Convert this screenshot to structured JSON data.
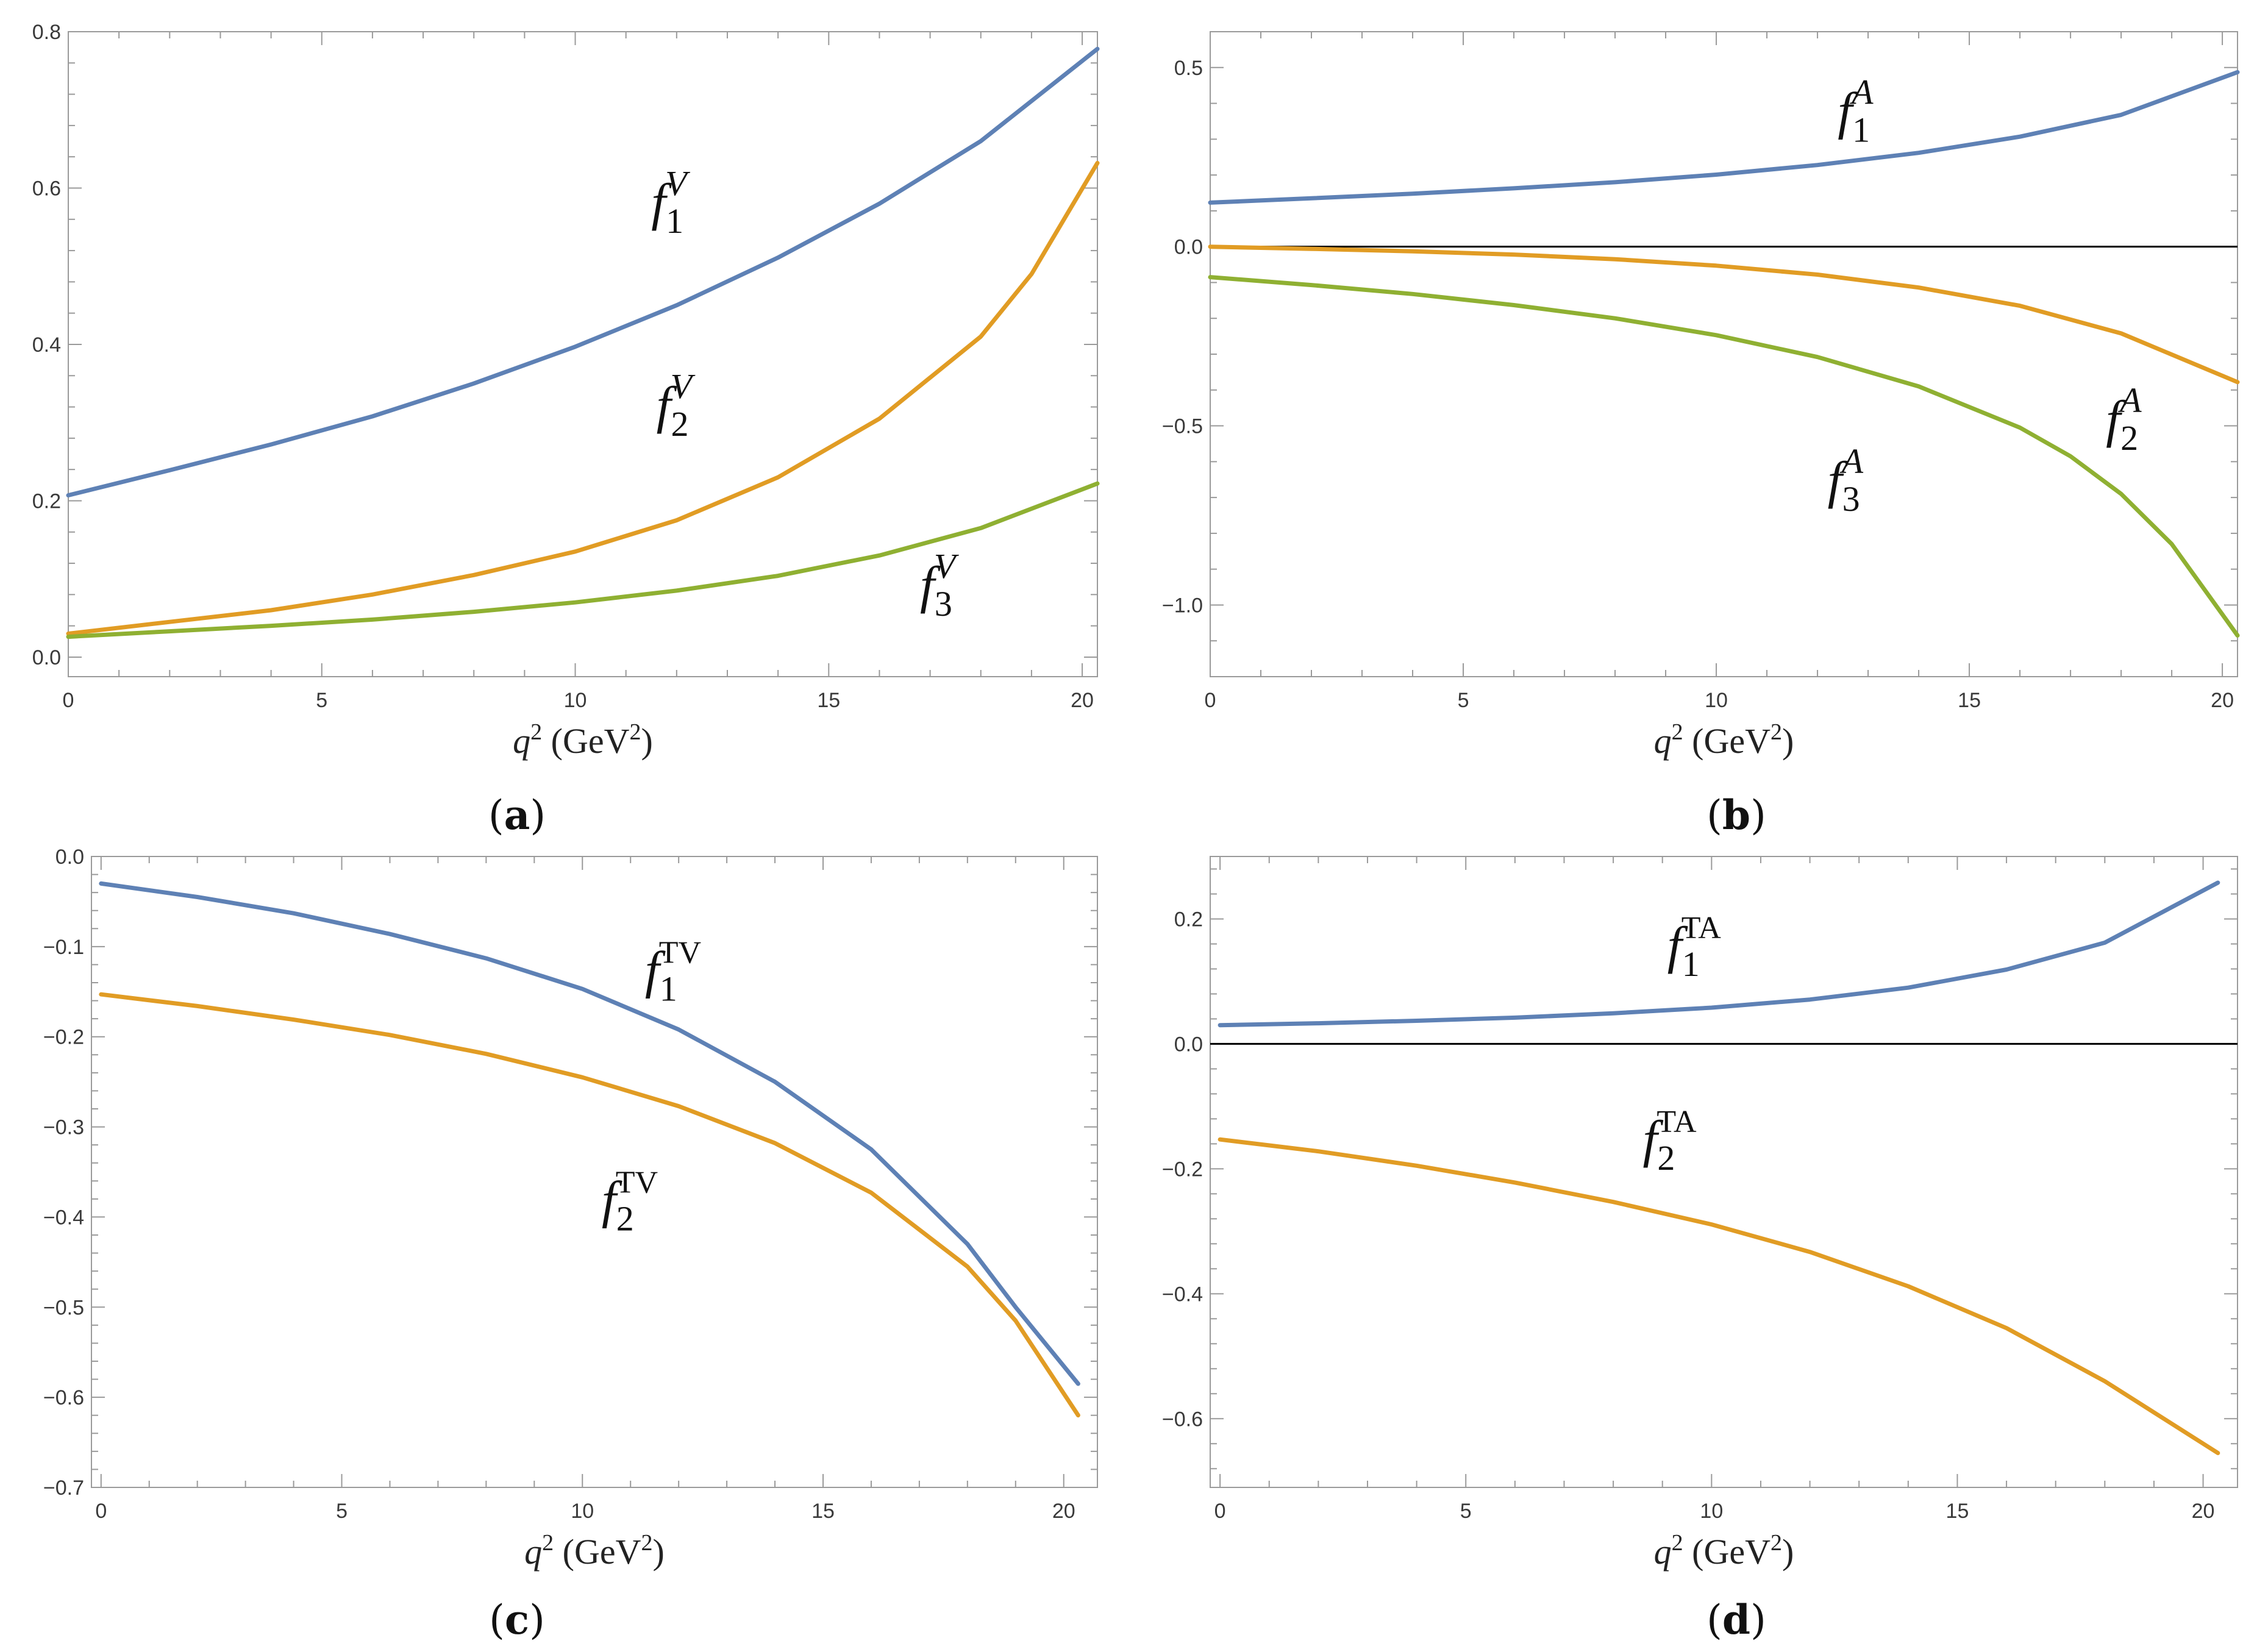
{
  "colors": {
    "blue": "#5e81b5",
    "orange": "#e19c24",
    "green": "#8fb032",
    "axis": "#9a9a9a",
    "zero": "#000000"
  },
  "chart_data": [
    {
      "id": "a",
      "type": "line",
      "caption": {
        "open": "(",
        "letter": "a",
        "close": ")"
      },
      "xlabel": {
        "var": "q",
        "exp": "2",
        "unit_open": " (GeV",
        "unit_exp": "2",
        "unit_close": ")"
      },
      "xlim": [
        0,
        20.3
      ],
      "ylim": [
        -0.025,
        0.8
      ],
      "xticks": [
        0,
        5,
        10,
        15,
        20
      ],
      "xtick_labels": [
        "0",
        "5",
        "10",
        "15",
        "20"
      ],
      "yticks": [
        0.0,
        0.2,
        0.4,
        0.6,
        0.8
      ],
      "ytick_labels": [
        "0.0",
        "0.2",
        "0.4",
        "0.6",
        "0.8"
      ],
      "zero_line": false,
      "series": [
        {
          "name": "f1V",
          "color": "blue",
          "label": {
            "f": "f",
            "sub": "1",
            "sup": "V",
            "upright": false,
            "at": [
              11.5,
              0.56
            ]
          },
          "x": [
            0,
            2,
            4,
            6,
            8,
            10,
            12,
            14,
            16,
            18,
            20.3
          ],
          "y": [
            0.207,
            0.239,
            0.272,
            0.308,
            0.35,
            0.397,
            0.45,
            0.511,
            0.58,
            0.66,
            0.778
          ]
        },
        {
          "name": "f2V",
          "color": "orange",
          "label": {
            "f": "f",
            "sub": "2",
            "sup": "V",
            "upright": false,
            "at": [
              11.6,
              0.3
            ]
          },
          "x": [
            0,
            2,
            4,
            6,
            8,
            10,
            12,
            14,
            16,
            18,
            19,
            20.3
          ],
          "y": [
            0.03,
            0.045,
            0.06,
            0.08,
            0.105,
            0.135,
            0.175,
            0.23,
            0.305,
            0.41,
            0.49,
            0.632
          ]
        },
        {
          "name": "f3V",
          "color": "green",
          "label": {
            "f": "f",
            "sub": "3",
            "sup": "V",
            "upright": false,
            "at": [
              16.8,
              0.07
            ]
          },
          "x": [
            0,
            2,
            4,
            6,
            8,
            10,
            12,
            14,
            16,
            18,
            20.3
          ],
          "y": [
            0.026,
            0.033,
            0.04,
            0.048,
            0.058,
            0.07,
            0.085,
            0.104,
            0.13,
            0.165,
            0.222
          ]
        }
      ]
    },
    {
      "id": "b",
      "type": "line",
      "caption": {
        "open": "(",
        "letter": "b",
        "close": ")"
      },
      "xlabel": {
        "var": "q",
        "exp": "2",
        "unit_open": " (GeV",
        "unit_exp": "2",
        "unit_close": ")"
      },
      "xlim": [
        0,
        20.3
      ],
      "ylim": [
        -1.2,
        0.6
      ],
      "xticks": [
        0,
        5,
        10,
        15,
        20
      ],
      "xtick_labels": [
        "0",
        "5",
        "10",
        "15",
        "20"
      ],
      "yticks": [
        -1.0,
        -0.5,
        0.0,
        0.5
      ],
      "ytick_labels": [
        "−1.0",
        "−0.5",
        "0.0",
        "0.5"
      ],
      "zero_line": true,
      "series": [
        {
          "name": "f1A",
          "color": "blue",
          "label": {
            "f": "f",
            "sub": "1",
            "sup": "A",
            "upright": false,
            "at": [
              12.4,
              0.33
            ]
          },
          "x": [
            0,
            2,
            4,
            6,
            8,
            10,
            12,
            14,
            16,
            18,
            20.3
          ],
          "y": [
            0.123,
            0.135,
            0.148,
            0.163,
            0.18,
            0.201,
            0.228,
            0.262,
            0.307,
            0.368,
            0.487
          ]
        },
        {
          "name": "f2A",
          "color": "orange",
          "label": {
            "f": "f",
            "sub": "2",
            "sup": "A",
            "upright": false,
            "at": [
              17.7,
              -0.53
            ]
          },
          "x": [
            0,
            2,
            4,
            6,
            8,
            10,
            12,
            14,
            16,
            18,
            20.3
          ],
          "y": [
            0.0,
            -0.006,
            -0.013,
            -0.022,
            -0.035,
            -0.053,
            -0.078,
            -0.114,
            -0.165,
            -0.242,
            -0.378
          ]
        },
        {
          "name": "f3A",
          "color": "green",
          "label": {
            "f": "f",
            "sub": "3",
            "sup": "A",
            "upright": false,
            "at": [
              12.2,
              -0.7
            ]
          },
          "x": [
            0,
            2,
            4,
            6,
            8,
            10,
            12,
            14,
            16,
            17,
            18,
            19,
            20.3
          ],
          "y": [
            -0.085,
            -0.107,
            -0.132,
            -0.163,
            -0.2,
            -0.247,
            -0.308,
            -0.39,
            -0.505,
            -0.585,
            -0.69,
            -0.83,
            -1.085
          ]
        }
      ]
    },
    {
      "id": "c",
      "type": "line",
      "caption": {
        "open": "(",
        "letter": "c",
        "close": ")"
      },
      "xlabel": {
        "var": "q",
        "exp": "2",
        "unit_open": " (GeV",
        "unit_exp": "2",
        "unit_close": ")"
      },
      "xlim": [
        -0.2,
        20.7
      ],
      "ylim": [
        -0.7,
        0.0
      ],
      "xticks": [
        0,
        5,
        10,
        15,
        20
      ],
      "xtick_labels": [
        "0",
        "5",
        "10",
        "15",
        "20"
      ],
      "yticks": [
        -0.7,
        -0.6,
        -0.5,
        -0.4,
        -0.3,
        -0.2,
        -0.1,
        0.0
      ],
      "ytick_labels": [
        "−0.7",
        "−0.6",
        "−0.5",
        "−0.4",
        "−0.3",
        "−0.2",
        "−0.1",
        "0.0"
      ],
      "zero_line": false,
      "series": [
        {
          "name": "f1TV",
          "color": "blue",
          "label": {
            "f": "f",
            "sub": "1",
            "sup": "TV",
            "upright": true,
            "at": [
              11.3,
              -0.145
            ]
          },
          "x": [
            0,
            2,
            4,
            6,
            8,
            10,
            12,
            14,
            16,
            18,
            19,
            20.3
          ],
          "y": [
            -0.03,
            -0.045,
            -0.063,
            -0.086,
            -0.113,
            -0.147,
            -0.192,
            -0.25,
            -0.325,
            -0.43,
            -0.5,
            -0.585
          ]
        },
        {
          "name": "f2TV",
          "color": "orange",
          "label": {
            "f": "f",
            "sub": "2",
            "sup": "TV",
            "upright": true,
            "at": [
              10.4,
              -0.4
            ]
          },
          "x": [
            0,
            2,
            4,
            6,
            8,
            10,
            12,
            14,
            16,
            18,
            19,
            20.3
          ],
          "y": [
            -0.153,
            -0.166,
            -0.181,
            -0.198,
            -0.219,
            -0.245,
            -0.277,
            -0.318,
            -0.373,
            -0.455,
            -0.515,
            -0.62
          ]
        }
      ]
    },
    {
      "id": "d",
      "type": "line",
      "caption": {
        "open": "(",
        "letter": "d",
        "close": ")"
      },
      "xlabel": {
        "var": "q",
        "exp": "2",
        "unit_open": " (GeV",
        "unit_exp": "2",
        "unit_close": ")"
      },
      "xlim": [
        -0.2,
        20.7
      ],
      "ylim": [
        -0.71,
        0.3
      ],
      "xticks": [
        0,
        5,
        10,
        15,
        20
      ],
      "xtick_labels": [
        "0",
        "5",
        "10",
        "15",
        "20"
      ],
      "yticks": [
        -0.6,
        -0.4,
        -0.2,
        0.0,
        0.2
      ],
      "ytick_labels": [
        "−0.6",
        "−0.4",
        "−0.2",
        "0.0",
        "0.2"
      ],
      "zero_line": true,
      "series": [
        {
          "name": "f1TA",
          "color": "blue",
          "label": {
            "f": "f",
            "sub": "1",
            "sup": "TA",
            "upright": true,
            "at": [
              9.1,
              0.13
            ]
          },
          "x": [
            0,
            2,
            4,
            6,
            8,
            10,
            12,
            14,
            16,
            18,
            20.3
          ],
          "y": [
            0.03,
            0.033,
            0.037,
            0.042,
            0.049,
            0.058,
            0.071,
            0.09,
            0.119,
            0.162,
            0.258
          ]
        },
        {
          "name": "f2TA",
          "color": "orange",
          "label": {
            "f": "f",
            "sub": "2",
            "sup": "TA",
            "upright": true,
            "at": [
              8.6,
              -0.18
            ]
          },
          "x": [
            0,
            2,
            4,
            6,
            8,
            10,
            12,
            14,
            16,
            18,
            20.3
          ],
          "y": [
            -0.153,
            -0.172,
            -0.195,
            -0.222,
            -0.253,
            -0.289,
            -0.333,
            -0.388,
            -0.455,
            -0.54,
            -0.655
          ]
        }
      ]
    }
  ]
}
